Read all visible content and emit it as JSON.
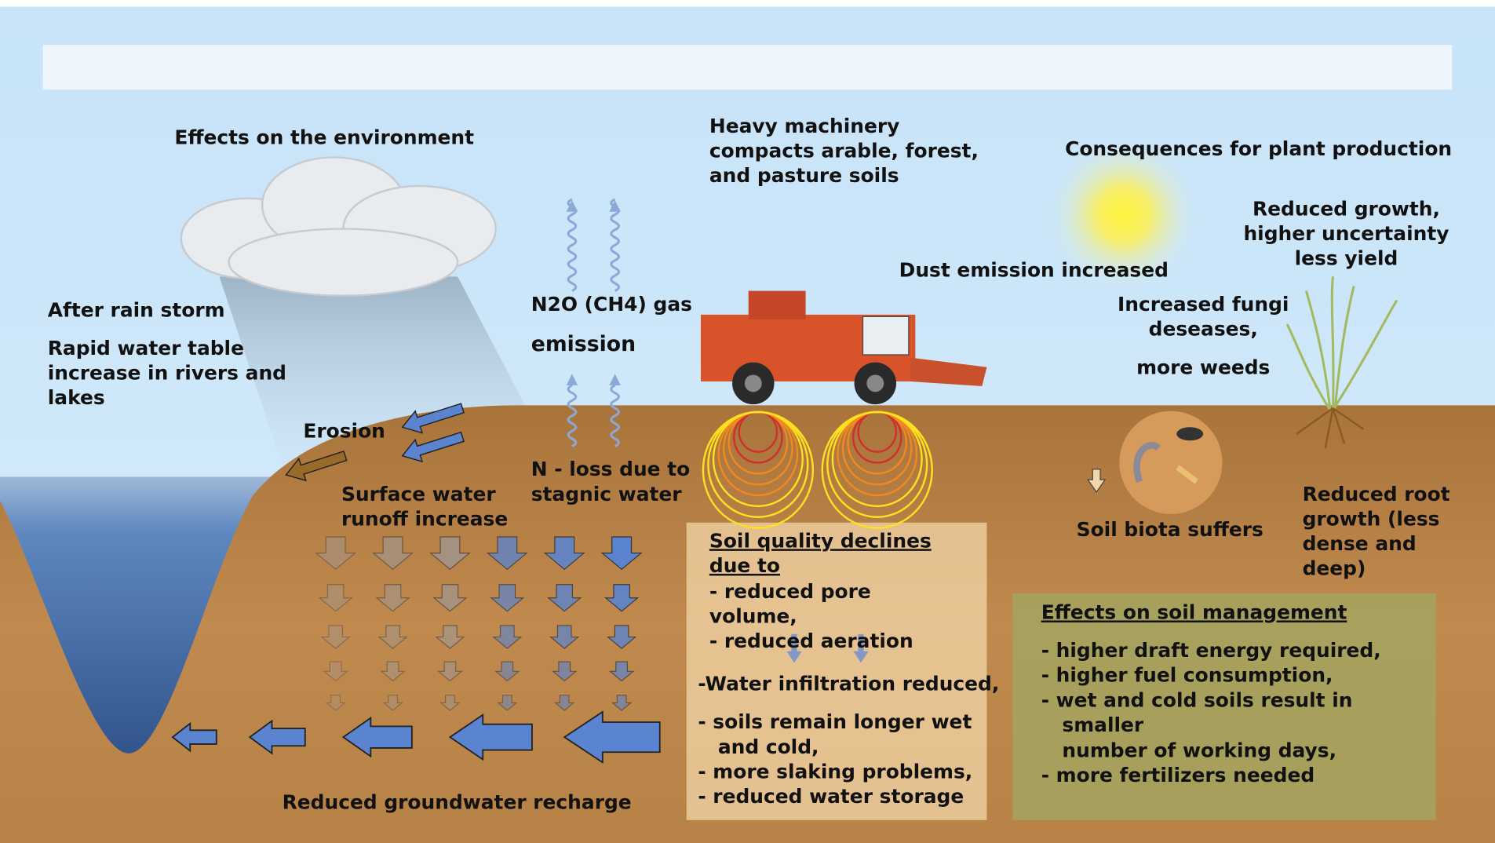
{
  "environment": {
    "heading": "Effects on the environment"
  },
  "rain": {
    "heading": "After rain storm",
    "lines": [
      "Rapid water table",
      "increase in rivers and",
      "lakes"
    ]
  },
  "erosion": "Erosion",
  "surface_runoff": [
    "Surface water",
    "runoff increase"
  ],
  "gas_emission": [
    "N2O (CH4) gas",
    "emission"
  ],
  "n_loss": [
    "N - loss due to",
    "stagnic water"
  ],
  "machinery": [
    "Heavy machinery",
    "compacts arable, forest,",
    "and pasture soils"
  ],
  "dust": "Dust emission increased",
  "plant_production": {
    "heading": "Consequences for plant production",
    "lines": [
      "Reduced growth,",
      "higher uncertainty",
      "less yield"
    ]
  },
  "fungi": [
    "Increased fungi",
    "deseases,",
    "more weeds"
  ],
  "soil_biota": "Soil biota suffers",
  "root_growth": [
    "Reduced root",
    "growth (less",
    "dense and",
    "deep)"
  ],
  "soil_quality": {
    "heading": [
      "Soil quality declines",
      "due to"
    ],
    "items": [
      "-  reduced pore",
      "volume,",
      "-  reduced aeration",
      "-Water infiltration reduced,",
      "- soils remain longer wet",
      "and cold,",
      "- more slaking problems,",
      "- reduced water storage"
    ]
  },
  "soil_management": {
    "heading": "Effects on soil management",
    "items": [
      "-  higher draft energy required,",
      "-  higher fuel consumption,",
      "-  wet and cold soils result in",
      "smaller",
      "number of working days,",
      "-  more fertilizers needed"
    ]
  },
  "groundwater": "Reduced groundwater recharge"
}
